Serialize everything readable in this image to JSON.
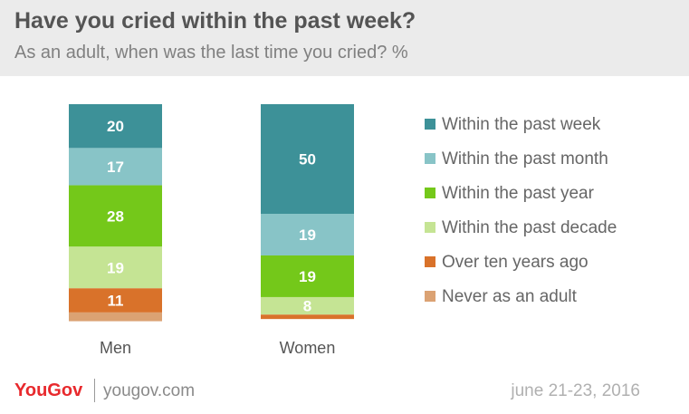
{
  "header": {
    "title": "Have you cried within the past week?",
    "subtitle": "As an adult, when was the last time you cried? %"
  },
  "chart_data": {
    "type": "bar",
    "stacked": true,
    "categories": [
      "Men",
      "Women"
    ],
    "series": [
      {
        "name": "Within the past week",
        "values": [
          20,
          50
        ],
        "color": "#3d9198"
      },
      {
        "name": "Within the past month",
        "values": [
          17,
          19
        ],
        "color": "#88c4c7"
      },
      {
        "name": "Within the past year",
        "values": [
          28,
          19
        ],
        "color": "#74c81a"
      },
      {
        "name": "Within the past decade",
        "values": [
          19,
          8
        ],
        "color": "#c5e494"
      },
      {
        "name": "Over ten years ago",
        "values": [
          11,
          2
        ],
        "color": "#d9722a"
      },
      {
        "name": "Never as an adult",
        "values": [
          4,
          0
        ],
        "color": "#dba273"
      }
    ],
    "data_labels": [
      [
        "20",
        "50"
      ],
      [
        "17",
        "19"
      ],
      [
        "28",
        "19"
      ],
      [
        "19",
        "8"
      ],
      [
        "11",
        ""
      ],
      [
        "",
        ""
      ]
    ],
    "ylim": [
      0,
      100
    ],
    "legend_position": "right",
    "grid": false
  },
  "footer": {
    "logo": "YouGov",
    "site": "yougov.com",
    "date": "june 21-23, 2016"
  }
}
